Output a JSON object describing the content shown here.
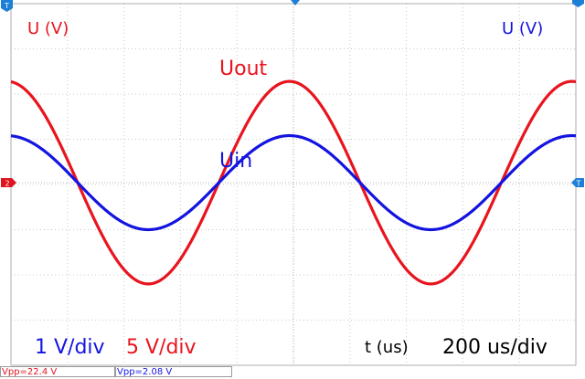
{
  "chart_data": {
    "type": "line",
    "title": "",
    "xlabel": "t (us)",
    "left_axis_label": "U (V)",
    "right_axis_label": "U (V)",
    "grid": true,
    "divisions": {
      "x": 10,
      "y": 8
    },
    "x_scale_per_div": "200 us/div",
    "xlim": [
      0,
      2000
    ],
    "ylim": [
      -4,
      4
    ],
    "series": [
      {
        "name": "Uout",
        "channel": 2,
        "color": "#e8141e",
        "scale_per_div": "5 V/div",
        "volts_per_div": 5,
        "amplitude_V": 11.2,
        "period_us": 1000,
        "phase_deg": 95
      },
      {
        "name": "Uin",
        "channel": 1,
        "color": "#1414e0",
        "scale_per_div": "1 V/div",
        "volts_per_div": 1,
        "amplitude_V": 1.04,
        "period_us": 1000,
        "phase_deg": 95
      }
    ],
    "x": [
      0,
      100,
      200,
      300,
      400,
      500,
      600,
      700,
      800,
      900,
      1000,
      1100,
      1200,
      1300,
      1400,
      1500,
      1600,
      1700,
      1800,
      1900,
      2000
    ],
    "values": {
      "Uout": [
        11.16,
        9.56,
        3.92,
        -3.07,
        -9.14,
        -11.16,
        -9.56,
        -3.92,
        3.07,
        9.14,
        11.16,
        9.56,
        3.92,
        -3.07,
        -9.14,
        -11.16,
        -9.56,
        -3.92,
        3.07,
        9.14,
        11.16
      ],
      "Uin": [
        1.04,
        0.89,
        0.36,
        -0.29,
        -0.85,
        -1.04,
        -0.89,
        -0.36,
        0.29,
        0.85,
        1.04,
        0.89,
        0.36,
        -0.29,
        -0.85,
        -1.04,
        -0.89,
        -0.36,
        0.29,
        0.85,
        1.04
      ]
    }
  },
  "labels": {
    "left_axis": "U (V)",
    "right_axis": "U (V)",
    "uout": "Uout",
    "uin": "Uin",
    "ch1_scale": "1 V/div",
    "ch2_scale": "5 V/div",
    "time_label": "t (us)",
    "time_scale": "200 us/div"
  },
  "markers": {
    "ch2_ground": "2",
    "trigger_left": "T",
    "trigger_right": "T"
  },
  "measurements": {
    "vpp_ch2": "Vpp=22.4 V",
    "vpp_ch1": "Vpp=2.08 V"
  }
}
